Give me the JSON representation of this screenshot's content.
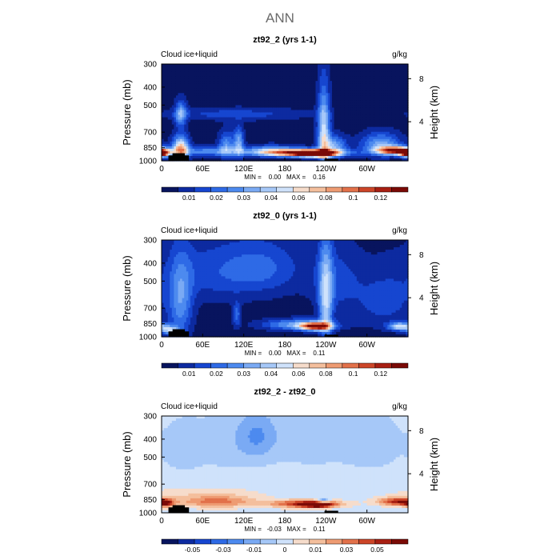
{
  "figure": {
    "title": "ANN"
  },
  "chart_data": [
    {
      "type": "heatmap",
      "title": "zt92_2 (yrs 1-1)",
      "variable_label": "Cloud ice+liquid",
      "units": "g/kg",
      "ylabel": "Pressure (mb)",
      "ylabel_right": "Height (km)",
      "x_ticks": [
        "0",
        "60E",
        "120E",
        "180",
        "120W",
        "60W"
      ],
      "x_tick_lon": [
        0,
        60,
        120,
        180,
        240,
        300
      ],
      "y_ticks": [
        300,
        400,
        500,
        700,
        850,
        1000
      ],
      "y_ticks_right": [
        8,
        4
      ],
      "ylim": [
        300,
        1000
      ],
      "xlim": [
        0,
        360
      ],
      "stats_text": "MIN =    0.00   MAX =    0.16",
      "colorbar": {
        "labels": [
          "0.01",
          "0.02",
          "0.03",
          "0.04",
          "0.06",
          "0.08",
          "0.1",
          "0.12"
        ],
        "colors": [
          "#08145e",
          "#0d2aa0",
          "#1646d0",
          "#2e6ae6",
          "#4d8aef",
          "#7aaaf4",
          "#a6c8f8",
          "#cfe2fb",
          "#f6dccb",
          "#f4bf9d",
          "#ee9b72",
          "#e2714a",
          "#cc4528",
          "#a81f12",
          "#7a0a06"
        ]
      },
      "field": {
        "bg_level": 0,
        "max_level": 14,
        "features": [
          {
            "lon": 0,
            "p": 915,
            "wlon": 8,
            "wp": 28,
            "amp": 13
          },
          {
            "lon": 28,
            "p": 860,
            "wlon": 8,
            "wp": 90,
            "amp": 9
          },
          {
            "lon": 28,
            "p": 560,
            "wlon": 6,
            "wp": 60,
            "amp": 5
          },
          {
            "lon": 70,
            "p": 890,
            "wlon": 40,
            "wp": 35,
            "amp": 4
          },
          {
            "lon": 110,
            "p": 560,
            "wlon": 70,
            "wp": 30,
            "amp": 2
          },
          {
            "lon": 160,
            "p": 880,
            "wlon": 25,
            "wp": 40,
            "amp": 4
          },
          {
            "lon": 95,
            "p": 820,
            "wlon": 8,
            "wp": 90,
            "amp": 4
          },
          {
            "lon": 113,
            "p": 800,
            "wlon": 5,
            "wp": 100,
            "amp": 5
          },
          {
            "lon": 205,
            "p": 905,
            "wlon": 40,
            "wp": 30,
            "amp": 12
          },
          {
            "lon": 225,
            "p": 915,
            "wlon": 18,
            "wp": 25,
            "amp": 14
          },
          {
            "lon": 237,
            "p": 700,
            "wlon": 6,
            "wp": 220,
            "amp": 7
          },
          {
            "lon": 252,
            "p": 830,
            "wlon": 12,
            "wp": 70,
            "amp": 5
          },
          {
            "lon": 342,
            "p": 880,
            "wlon": 18,
            "wp": 30,
            "amp": 13
          },
          {
            "lon": 320,
            "p": 820,
            "wlon": 20,
            "wp": 80,
            "amp": 5
          }
        ],
        "terrain": [
          {
            "lon0": 10,
            "lon1": 40,
            "p": 935
          },
          {
            "lon0": 16,
            "lon1": 34,
            "p": 910
          },
          {
            "lon0": 238,
            "lon1": 258,
            "p": 975
          }
        ]
      }
    },
    {
      "type": "heatmap",
      "title": "zt92_0 (yrs 1-1)",
      "variable_label": "Cloud ice+liquid",
      "units": "g/kg",
      "ylabel": "Pressure (mb)",
      "ylabel_right": "Height (km)",
      "x_ticks": [
        "0",
        "60E",
        "120E",
        "180",
        "120W",
        "60W"
      ],
      "x_tick_lon": [
        0,
        60,
        120,
        180,
        240,
        300
      ],
      "y_ticks": [
        300,
        400,
        500,
        700,
        850,
        1000
      ],
      "y_ticks_right": [
        8,
        4
      ],
      "ylim": [
        300,
        1000
      ],
      "xlim": [
        0,
        360
      ],
      "stats_text": "MIN =    0.00   MAX =    0.11",
      "colorbar": {
        "labels": [
          "0.01",
          "0.02",
          "0.03",
          "0.04",
          "0.06",
          "0.08",
          "0.1",
          "0.12"
        ],
        "colors": [
          "#08145e",
          "#0d2aa0",
          "#1646d0",
          "#2e6ae6",
          "#4d8aef",
          "#7aaaf4",
          "#a6c8f8",
          "#cfe2fb",
          "#f6dccb",
          "#f4bf9d",
          "#ee9b72",
          "#e2714a",
          "#cc4528",
          "#a81f12",
          "#7a0a06"
        ]
      },
      "field": {
        "bg_level": 0,
        "max_level": 14,
        "features": [
          {
            "lon": 12,
            "p": 920,
            "wlon": 10,
            "wp": 35,
            "amp": 6
          },
          {
            "lon": 28,
            "p": 650,
            "wlon": 12,
            "wp": 220,
            "amp": 4
          },
          {
            "lon": 80,
            "p": 450,
            "wlon": 60,
            "wp": 120,
            "amp": 2
          },
          {
            "lon": 150,
            "p": 420,
            "wlon": 40,
            "wp": 100,
            "amp": 2
          },
          {
            "lon": 110,
            "p": 760,
            "wlon": 4,
            "wp": 80,
            "amp": 3
          },
          {
            "lon": 200,
            "p": 860,
            "wlon": 35,
            "wp": 40,
            "amp": 5
          },
          {
            "lon": 225,
            "p": 880,
            "wlon": 15,
            "wp": 30,
            "amp": 12
          },
          {
            "lon": 240,
            "p": 640,
            "wlon": 7,
            "wp": 260,
            "amp": 6
          },
          {
            "lon": 255,
            "p": 500,
            "wlon": 25,
            "wp": 140,
            "amp": 2
          },
          {
            "lon": 348,
            "p": 880,
            "wlon": 12,
            "wp": 30,
            "amp": 7
          },
          {
            "lon": 325,
            "p": 650,
            "wlon": 30,
            "wp": 150,
            "amp": 2
          }
        ],
        "terrain": [
          {
            "lon0": 10,
            "lon1": 40,
            "p": 935
          },
          {
            "lon0": 16,
            "lon1": 34,
            "p": 910
          },
          {
            "lon0": 238,
            "lon1": 258,
            "p": 975
          }
        ]
      }
    },
    {
      "type": "heatmap",
      "title": "zt92_2 - zt92_0",
      "variable_label": "Cloud ice+liquid",
      "units": "g/kg",
      "ylabel": "Pressure (mb)",
      "ylabel_right": "Height (km)",
      "x_ticks": [
        "0",
        "60E",
        "120E",
        "180",
        "120W",
        "60W"
      ],
      "x_tick_lon": [
        0,
        60,
        120,
        180,
        240,
        300
      ],
      "y_ticks": [
        300,
        400,
        500,
        700,
        850,
        1000
      ],
      "y_ticks_right": [
        8,
        4
      ],
      "ylim": [
        300,
        1000
      ],
      "xlim": [
        0,
        360
      ],
      "stats_text": "MIN =   -0.03   MAX =    0.11",
      "colorbar": {
        "labels": [
          "-0.05",
          "-0.03",
          "-0.01",
          "0",
          "0.01",
          "0.03",
          "0.05"
        ],
        "colors": [
          "#08145e",
          "#0d2aa0",
          "#1646d0",
          "#2e6ae6",
          "#4d8aef",
          "#7aaaf4",
          "#a6c8f8",
          "#cfe2fb",
          "#f6dccb",
          "#f4bf9d",
          "#ee9b72",
          "#e2714a",
          "#cc4528",
          "#a81f12",
          "#7a0a06"
        ]
      },
      "field": {
        "bg_level": 7,
        "max_level": 14,
        "features": [
          {
            "lon": 5,
            "p": 890,
            "wlon": 8,
            "wp": 30,
            "amp": 5
          },
          {
            "lon": 80,
            "p": 870,
            "wlon": 40,
            "wp": 45,
            "amp": 4
          },
          {
            "lon": 60,
            "p": 780,
            "wlon": 60,
            "wp": 40,
            "amp": 1
          },
          {
            "lon": 210,
            "p": 895,
            "wlon": 35,
            "wp": 30,
            "amp": 6
          },
          {
            "lon": 228,
            "p": 905,
            "wlon": 15,
            "wp": 20,
            "amp": 7
          },
          {
            "lon": 345,
            "p": 870,
            "wlon": 20,
            "wp": 30,
            "amp": 6
          },
          {
            "lon": 30,
            "p": 450,
            "wlon": 20,
            "wp": 100,
            "amp": -1
          },
          {
            "lon": 100,
            "p": 420,
            "wlon": 40,
            "wp": 120,
            "amp": -1
          },
          {
            "lon": 140,
            "p": 380,
            "wlon": 20,
            "wp": 80,
            "amp": -2
          },
          {
            "lon": 220,
            "p": 400,
            "wlon": 45,
            "wp": 120,
            "amp": -1
          },
          {
            "lon": 237,
            "p": 860,
            "wlon": 6,
            "wp": 20,
            "amp": -4
          },
          {
            "lon": 310,
            "p": 420,
            "wlon": 30,
            "wp": 120,
            "amp": -1
          }
        ],
        "terrain": [
          {
            "lon0": 10,
            "lon1": 40,
            "p": 935
          },
          {
            "lon0": 16,
            "lon1": 34,
            "p": 910
          },
          {
            "lon0": 238,
            "lon1": 258,
            "p": 975
          }
        ]
      }
    }
  ]
}
